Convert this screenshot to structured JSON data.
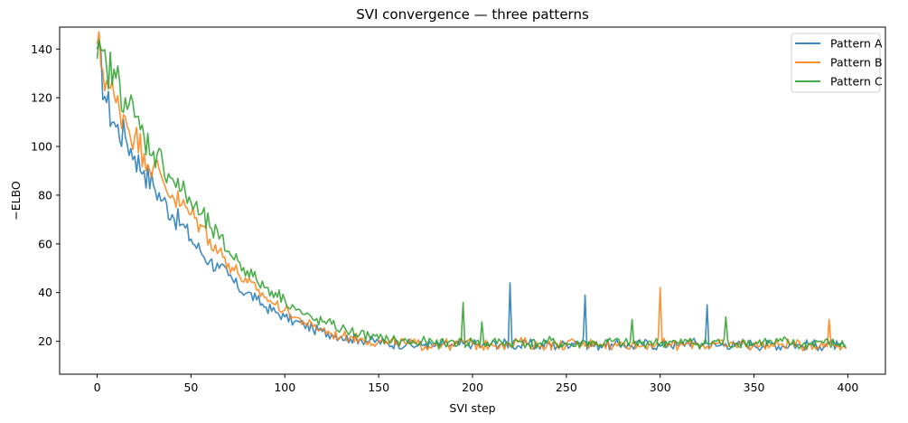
{
  "chart_data": {
    "type": "line",
    "title": "SVI convergence — three patterns",
    "xlabel": "SVI step",
    "ylabel": "−ELBO",
    "xlim": [
      -20,
      420
    ],
    "ylim": [
      6.5,
      149
    ],
    "xticks": [
      0,
      50,
      100,
      150,
      200,
      250,
      300,
      350,
      400
    ],
    "yticks": [
      20,
      40,
      60,
      80,
      100,
      120,
      140
    ],
    "grid": false,
    "legend_position": "upper right",
    "x": [
      0,
      5,
      10,
      15,
      20,
      25,
      30,
      35,
      40,
      45,
      50,
      55,
      60,
      65,
      70,
      75,
      80,
      85,
      90,
      95,
      100,
      105,
      110,
      115,
      120,
      125,
      130,
      135,
      140,
      145,
      150,
      155,
      160,
      165,
      170,
      175,
      180,
      185,
      190,
      195,
      200,
      205,
      210,
      215,
      220,
      225,
      230,
      235,
      240,
      245,
      250,
      255,
      260,
      265,
      270,
      275,
      280,
      285,
      290,
      295,
      300,
      305,
      310,
      315,
      320,
      325,
      330,
      335,
      340,
      345,
      350,
      355,
      360,
      365,
      370,
      375,
      380,
      385,
      390,
      395,
      399
    ],
    "series": [
      {
        "name": "Pattern A",
        "color": "#1f77b4",
        "values": [
          140,
          118,
          108,
          104,
          96,
          90,
          84,
          78,
          72,
          68,
          62,
          57,
          53,
          50,
          47,
          42,
          40,
          37,
          34,
          32,
          30,
          28,
          27,
          25,
          24,
          23,
          22,
          21,
          21,
          20,
          20,
          19,
          19,
          19,
          18,
          19,
          18,
          19,
          18,
          19,
          19,
          18,
          19,
          19,
          44,
          18,
          19,
          18,
          19,
          18,
          19,
          20,
          39,
          18,
          19,
          18,
          19,
          18,
          19,
          19,
          18,
          19,
          18,
          20,
          19,
          35,
          18,
          19,
          18,
          19,
          19,
          18,
          19,
          18,
          19,
          18,
          19,
          18,
          19,
          18,
          17
        ]
      },
      {
        "name": "Pattern B",
        "color": "#ff7f0e",
        "values": [
          142,
          127,
          118,
          112,
          104,
          97,
          92,
          86,
          80,
          76,
          72,
          68,
          62,
          57,
          52,
          48,
          44,
          41,
          38,
          35,
          33,
          30,
          28,
          26,
          25,
          23,
          22,
          22,
          21,
          20,
          20,
          19,
          20,
          19,
          19,
          18,
          19,
          19,
          18,
          20,
          19,
          18,
          19,
          19,
          18,
          20,
          19,
          18,
          19,
          18,
          19,
          19,
          18,
          20,
          19,
          18,
          19,
          19,
          18,
          19,
          42,
          19,
          18,
          19,
          19,
          18,
          19,
          18,
          19,
          19,
          18,
          19,
          18,
          19,
          19,
          18,
          19,
          18,
          29,
          19,
          17
        ]
      },
      {
        "name": "Pattern C",
        "color": "#2ca02c",
        "values": [
          136,
          133,
          128,
          120,
          112,
          104,
          98,
          93,
          87,
          82,
          77,
          72,
          67,
          62,
          57,
          53,
          49,
          45,
          42,
          40,
          37,
          34,
          31,
          29,
          28,
          27,
          25,
          24,
          23,
          22,
          21,
          21,
          20,
          20,
          19,
          20,
          19,
          19,
          20,
          36,
          20,
          28,
          19,
          20,
          19,
          20,
          19,
          19,
          20,
          19,
          19,
          18,
          20,
          19,
          19,
          20,
          19,
          29,
          19,
          20,
          19,
          20,
          19,
          20,
          19,
          19,
          20,
          30,
          19,
          20,
          19,
          20,
          19,
          20,
          19,
          18,
          19,
          20,
          19,
          19,
          18
        ]
      }
    ]
  },
  "legend": {
    "items": [
      {
        "label": "Pattern A",
        "color": "#1f77b4"
      },
      {
        "label": "Pattern B",
        "color": "#ff7f0e"
      },
      {
        "label": "Pattern C",
        "color": "#2ca02c"
      }
    ]
  }
}
